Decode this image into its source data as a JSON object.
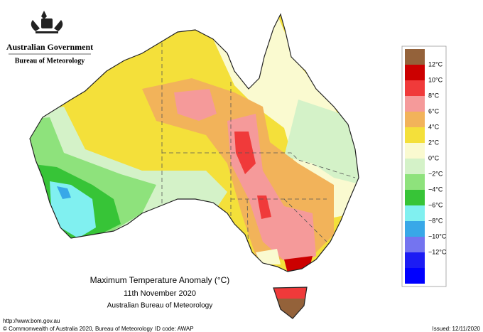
{
  "header": {
    "government": "Australian Government",
    "bureau": "Bureau of Meteorology"
  },
  "map": {
    "title": "Maximum Temperature Anomaly (°C)",
    "date": "11th November 2020",
    "source": "Australian Bureau of Meteorology"
  },
  "legend": {
    "colors": [
      "#94623a",
      "#cc0000",
      "#f03a3a",
      "#f59a9a",
      "#f2b35a",
      "#f4e03a",
      "#fafad0",
      "#d4f2c8",
      "#8ee27c",
      "#37c437",
      "#80f0f0",
      "#38a8e8",
      "#7474f0",
      "#1c1cf4",
      "#0000ff"
    ],
    "labels": [
      "12°C",
      "10°C",
      "8°C",
      "6°C",
      "4°C",
      "2°C",
      "0°C",
      "−2°C",
      "−4°C",
      "−6°C",
      "−8°C",
      "−10°C",
      "−12°C"
    ]
  },
  "footer": {
    "url": "http://www.bom.gov.au",
    "copyright": "© Commonwealth of Australia 2020, Bureau of Meteorology",
    "id_code": "ID code: AWAP",
    "issued": "Issued: 12/11/2020"
  }
}
